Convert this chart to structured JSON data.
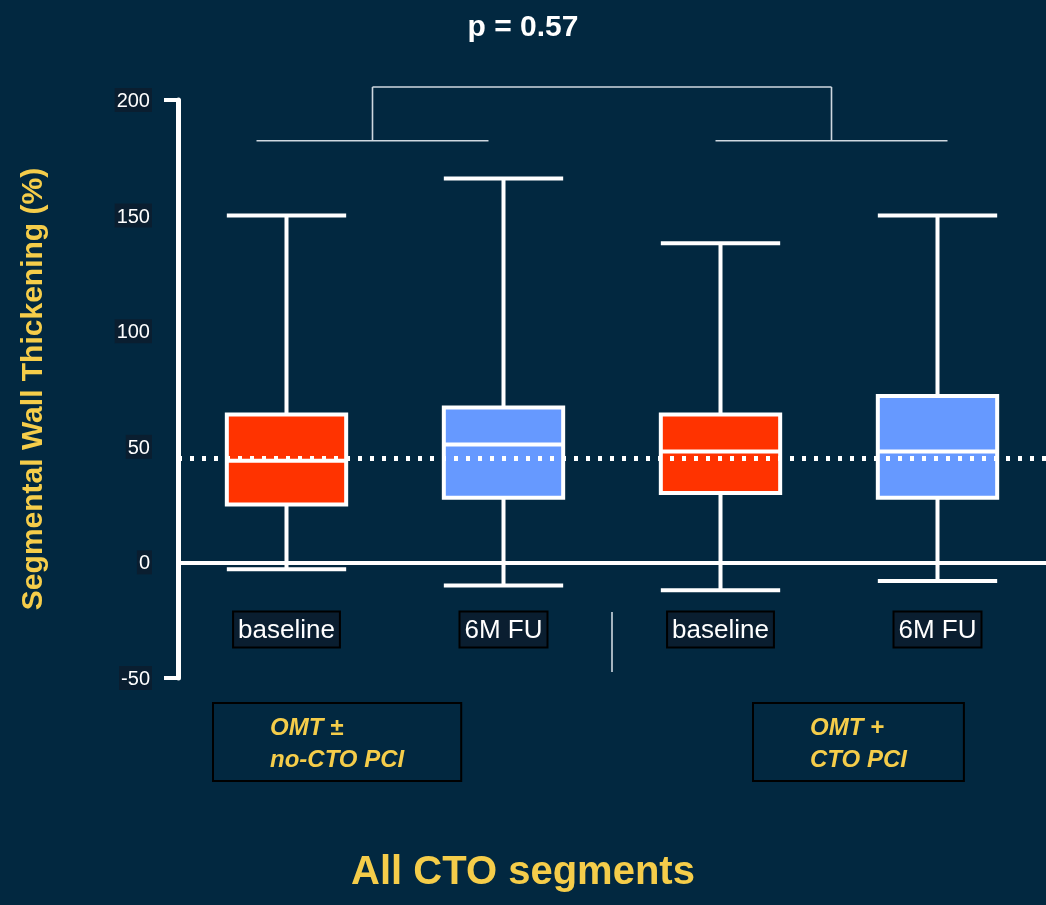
{
  "chart_data": {
    "type": "box",
    "ylabel": "Segmental Wall Thickening (%)",
    "categories": [
      "baseline",
      "6M FU",
      "baseline",
      "6M FU"
    ],
    "boxes": [
      {
        "low": -3,
        "q1": 25,
        "median": 44,
        "q3": 64,
        "high": 150
      },
      {
        "low": -10,
        "q1": 28,
        "median": 51,
        "q3": 67,
        "high": 166
      },
      {
        "low": -12,
        "q1": 30,
        "median": 48,
        "q3": 64,
        "high": 138
      },
      {
        "low": -8,
        "q1": 28,
        "median": 48,
        "q3": 72,
        "high": 150
      }
    ],
    "colors": [
      "#ff3300",
      "#6699ff",
      "#ff3300",
      "#6699ff"
    ],
    "ylim": [
      -50,
      200
    ],
    "yticks": [
      -50,
      0,
      50,
      100,
      150,
      200
    ],
    "ref_lines": [
      {
        "axis": "y",
        "value": 45,
        "line_style": "dotted",
        "color": "#ffffff"
      }
    ],
    "annotations": [
      "p = 0.57",
      "OMT ±\nno-CTO PCI",
      "OMT +\nCTO PCI",
      "All CTO segments"
    ],
    "grid": false
  }
}
